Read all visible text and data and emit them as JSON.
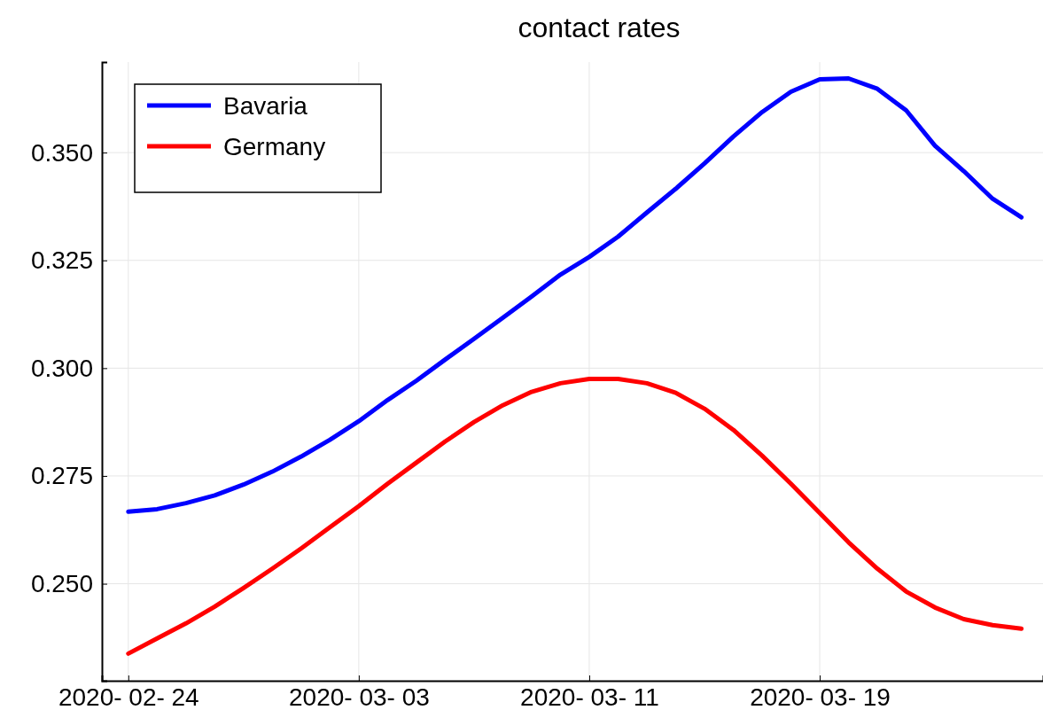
{
  "chart_data": {
    "type": "line",
    "title": "contact rates",
    "x": [
      "2020-02-24",
      "2020-02-25",
      "2020-02-26",
      "2020-02-27",
      "2020-02-28",
      "2020-02-29",
      "2020-03-01",
      "2020-03-02",
      "2020-03-03",
      "2020-03-04",
      "2020-03-05",
      "2020-03-06",
      "2020-03-07",
      "2020-03-08",
      "2020-03-09",
      "2020-03-10",
      "2020-03-11",
      "2020-03-12",
      "2020-03-13",
      "2020-03-14",
      "2020-03-15",
      "2020-03-16",
      "2020-03-17",
      "2020-03-18",
      "2020-03-19",
      "2020-03-20",
      "2020-03-21",
      "2020-03-22",
      "2020-03-23",
      "2020-03-24",
      "2020-03-25",
      "2020-03-26"
    ],
    "series": [
      {
        "name": "Bavaria",
        "color": "#0000ff",
        "values": [
          0.2667,
          0.2673,
          0.2687,
          0.2705,
          0.273,
          0.276,
          0.2795,
          0.2834,
          0.2877,
          0.2926,
          0.2971,
          0.302,
          0.3068,
          0.3117,
          0.3166,
          0.3217,
          0.3258,
          0.3305,
          0.3361,
          0.3416,
          0.3475,
          0.3537,
          0.3594,
          0.3641,
          0.367,
          0.3672,
          0.3648,
          0.3598,
          0.3516,
          0.3457,
          0.3393,
          0.335
        ]
      },
      {
        "name": "Germany",
        "color": "#ff0000",
        "values": [
          0.2338,
          0.2373,
          0.2408,
          0.2447,
          0.249,
          0.2535,
          0.2582,
          0.2631,
          0.268,
          0.2732,
          0.2781,
          0.283,
          0.2875,
          0.2914,
          0.2945,
          0.2965,
          0.2975,
          0.2975,
          0.2965,
          0.2943,
          0.2906,
          0.2857,
          0.2797,
          0.2732,
          0.2664,
          0.2596,
          0.2535,
          0.2482,
          0.2445,
          0.2418,
          0.2404,
          0.2396
        ]
      }
    ],
    "xlim": [
      "2020-02-23T02:00",
      "2020-03-26T18:00"
    ],
    "xticks": [
      {
        "value": "2020-02-24",
        "label": "2020- 02- 24"
      },
      {
        "value": "2020-03-03",
        "label": "2020- 03- 03"
      },
      {
        "value": "2020-03-11",
        "label": "2020- 03- 11"
      },
      {
        "value": "2020-03-19",
        "label": "2020- 03- 19"
      }
    ],
    "ylim": [
      0.2275,
      0.371
    ],
    "yticks": [
      {
        "value": 0.25,
        "label": "0.250"
      },
      {
        "value": 0.275,
        "label": "0.275"
      },
      {
        "value": 0.3,
        "label": "0.300"
      },
      {
        "value": 0.325,
        "label": "0.325"
      },
      {
        "value": 0.35,
        "label": "0.350"
      }
    ],
    "grid": true,
    "legend": "top left",
    "line_style": "solid",
    "marker": "none"
  }
}
